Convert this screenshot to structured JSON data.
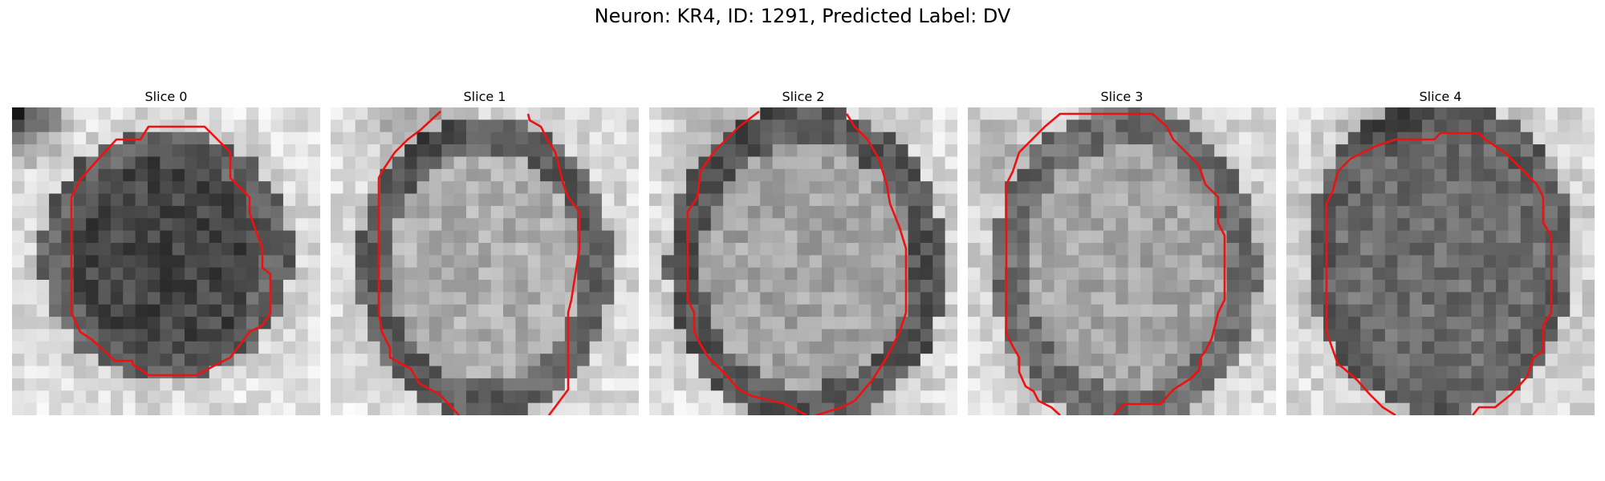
{
  "figure": {
    "title": "Neuron: KR4, ID: 1291, Predicted Label: DV"
  },
  "panels": [
    {
      "title": "Slice 0"
    },
    {
      "title": "Slice 1"
    },
    {
      "title": "Slice 2"
    },
    {
      "title": "Slice 3"
    },
    {
      "title": "Slice 4"
    }
  ],
  "colors": {
    "contour": "#ee1111",
    "colormap": "gray"
  }
}
